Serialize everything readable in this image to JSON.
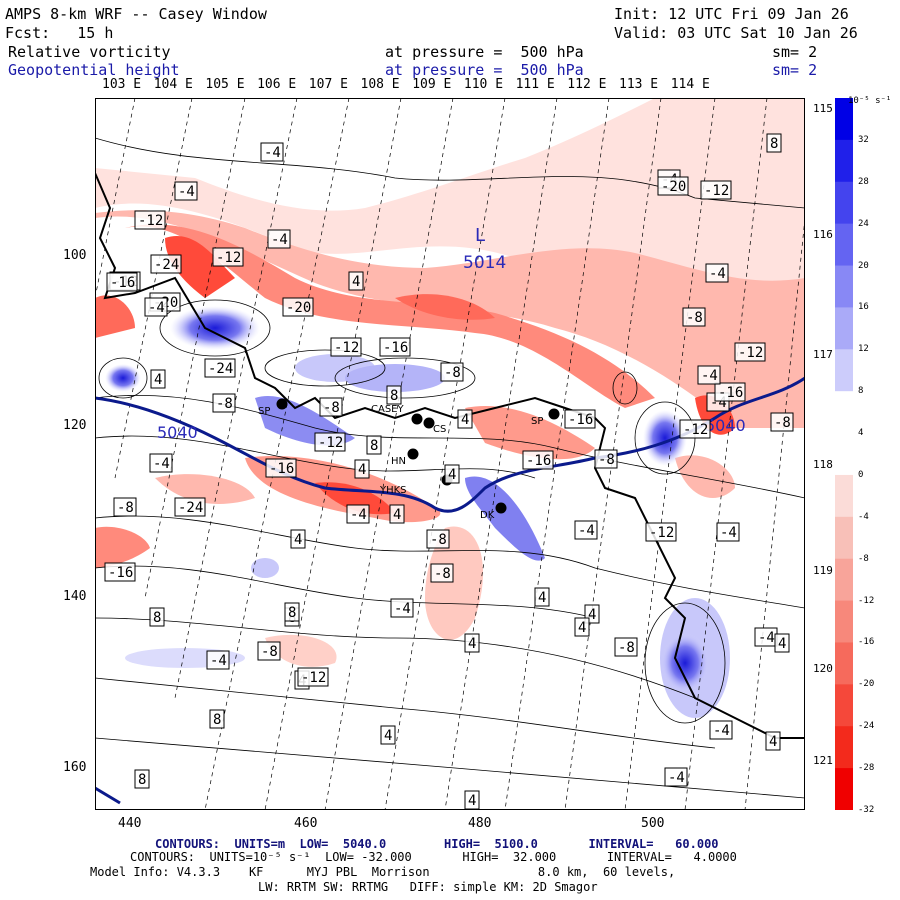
{
  "header": {
    "title": "AMPS 8-km WRF -- Casey Window",
    "init": "Init: 12 UTC Fri 09 Jan 26",
    "fcst": "Fcst:   15 h",
    "valid": "Valid: 03 UTC Sat 10 Jan 26",
    "field1": "Relative vorticity",
    "field1_level": "at pressure =  500 hPa",
    "field1_sm": "sm= 2",
    "field2": "Geopotential height",
    "field2_level": "at pressure =  500 hPa",
    "field2_sm": "sm= 2"
  },
  "colors": {
    "blue_text": "#1a1aa8",
    "height_contour": "#0b1a8c",
    "neg_strong": "#ff1a1a",
    "pos_strong": "#1a1aff"
  },
  "lon_labels": [
    "103 E",
    "104 E",
    "105 E",
    "106 E",
    "107 E",
    "108 E",
    "109 E",
    "110 E",
    "111 E",
    "112 E",
    "113 E",
    "114 E"
  ],
  "lat_labels_right": [
    "115 E",
    "116 E",
    "117 E",
    "118 E",
    "119 E",
    "120 E",
    "121 E"
  ],
  "x_axis": [
    "440",
    "460",
    "480",
    "500"
  ],
  "y_axis": [
    "100",
    "120",
    "140",
    "160"
  ],
  "colorbar": {
    "unit": "10⁻⁵ s⁻¹",
    "labels": [
      "32",
      "28",
      "24",
      "20",
      "16",
      "12",
      "8",
      "4",
      "0",
      "-4",
      "-8",
      "-12",
      "-16",
      "-20",
      "-24",
      "-28",
      "-32"
    ]
  },
  "contour_labels": [
    "-4",
    "-4",
    "-12",
    "-4",
    "-12",
    "-24",
    "-12",
    "4",
    "-16",
    "-4",
    "-20",
    "-20",
    "-12",
    "-16",
    "-8",
    "-4",
    "4",
    "-8",
    "-8",
    "8",
    "4",
    "-16",
    "-12",
    "8",
    "-4",
    "-16",
    "4",
    "-16",
    "-8",
    "-8",
    "-24",
    "-4",
    "4",
    "-8",
    "-16",
    "4",
    "4",
    "-8",
    "8",
    "-4",
    "8",
    "4",
    "-8",
    "-4",
    "4",
    "-4",
    "-12",
    "4",
    "4",
    "4",
    "-4",
    "-12",
    "8",
    "4",
    "-4",
    "-8",
    "4",
    "4",
    "8",
    "-4",
    "8",
    "4",
    "-12",
    "-8",
    "-4",
    "-4",
    "-16",
    "-12",
    "-8",
    "-4",
    "-4",
    "-24",
    "-20",
    "-12",
    "8"
  ],
  "map_text": {
    "low_letter": "L",
    "low_value": "5014",
    "contour_5040_left": "5040",
    "contour_5040_right": "5040",
    "stations": [
      "SP",
      "CASEY",
      "CS",
      "HN",
      "YHKS",
      "DK",
      "SP"
    ]
  },
  "footer": {
    "contours1": "CONTOURS:  UNITS=m  LOW=  5040.0        HIGH=  5100.0       INTERVAL=   60.000",
    "contours2": "CONTOURS:  UNITS=10⁻⁵ s⁻¹  LOW= -32.000       HIGH=  32.000       INTERVAL=   4.0000",
    "model": "Model Info: V4.3.3    KF      MYJ PBL  Morrison               8.0 km,  60 levels,",
    "model2": "LW: RRTM SW: RRTMG   DIFF: simple KM: 2D Smagor"
  }
}
